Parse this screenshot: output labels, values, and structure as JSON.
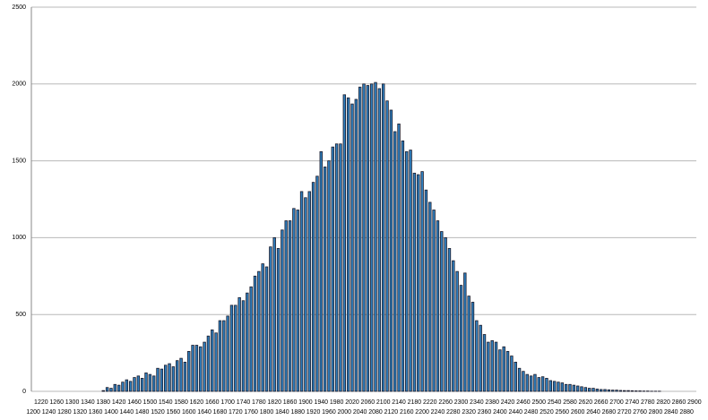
{
  "chart_data": {
    "type": "bar",
    "categories": [
      "1200",
      null,
      "1220",
      null,
      "1240",
      null,
      "1260",
      null,
      "1280",
      null,
      "1300",
      null,
      "1320",
      null,
      "1340",
      null,
      "1360",
      null,
      "1380",
      null,
      "1400",
      null,
      "1420",
      null,
      "1440",
      null,
      "1460",
      null,
      "1480",
      null,
      "1500",
      null,
      "1520",
      null,
      "1540",
      null,
      "1560",
      null,
      "1580",
      null,
      "1600",
      null,
      "1620",
      null,
      "1640",
      null,
      "1660",
      null,
      "1680",
      null,
      "1700",
      null,
      "1720",
      null,
      "1740",
      null,
      "1760",
      null,
      "1780",
      null,
      "1800",
      null,
      "1820",
      null,
      "1840",
      null,
      "1860",
      null,
      "1880",
      null,
      "1900",
      null,
      "1920",
      null,
      "1940",
      null,
      "1960",
      null,
      "1980",
      null,
      "2000",
      null,
      "2020",
      null,
      "2040",
      null,
      "2060",
      null,
      "2080",
      null,
      "2100",
      null,
      "2120",
      null,
      "2140",
      null,
      "2160",
      null,
      "2180",
      null,
      "2200",
      null,
      "2220",
      null,
      "2240",
      null,
      "2260",
      null,
      "2280",
      null,
      "2300",
      null,
      "2320",
      null,
      "2340",
      null,
      "2360",
      null,
      "2380",
      null,
      "2400",
      null,
      "2420",
      null,
      "2440",
      null,
      "2460",
      null,
      "2480",
      null,
      "2500",
      null,
      "2520",
      null,
      "2540",
      null,
      "2560",
      null,
      "2580",
      null,
      "2600",
      null,
      "2620",
      null,
      "2640",
      null,
      "2660",
      null,
      "2680",
      null,
      "2700",
      null,
      "2720",
      null,
      "2740",
      null,
      "2760",
      null,
      "2780",
      null,
      "2800",
      null,
      "2820",
      null,
      "2840",
      null,
      "2860",
      null,
      "2880",
      null,
      "2900"
    ],
    "values": [
      0,
      0,
      0,
      0,
      0,
      0,
      0,
      0,
      0,
      0,
      0,
      0,
      0,
      0,
      0,
      0,
      0,
      0,
      5,
      25,
      20,
      45,
      40,
      60,
      75,
      65,
      90,
      100,
      85,
      120,
      110,
      100,
      150,
      145,
      170,
      180,
      160,
      200,
      215,
      190,
      260,
      300,
      300,
      290,
      320,
      360,
      400,
      380,
      460,
      460,
      490,
      560,
      560,
      610,
      590,
      640,
      680,
      750,
      780,
      830,
      810,
      940,
      1000,
      930,
      1050,
      1110,
      1110,
      1190,
      1180,
      1300,
      1260,
      1300,
      1360,
      1400,
      1560,
      1460,
      1500,
      1590,
      1610,
      1610,
      1930,
      1910,
      1870,
      1900,
      1980,
      2000,
      1990,
      2000,
      2010,
      1970,
      2000,
      1890,
      1830,
      1690,
      1740,
      1630,
      1560,
      1570,
      1420,
      1410,
      1430,
      1310,
      1230,
      1180,
      1110,
      1040,
      1000,
      930,
      850,
      780,
      690,
      770,
      620,
      580,
      460,
      430,
      370,
      320,
      330,
      320,
      270,
      290,
      260,
      230,
      190,
      150,
      130,
      110,
      100,
      110,
      90,
      95,
      85,
      70,
      65,
      60,
      55,
      45,
      45,
      40,
      35,
      30,
      25,
      20,
      20,
      15,
      12,
      12,
      10,
      8,
      8,
      6,
      5,
      5,
      4,
      3,
      3,
      2,
      2,
      1,
      1,
      1,
      0,
      0,
      0,
      0,
      0,
      0,
      0,
      0,
      0
    ],
    "color": "#2f7fbf",
    "ylim": [
      0,
      2500
    ],
    "yticks": [
      0,
      500,
      1000,
      1500,
      2000,
      2500
    ],
    "grid": true
  }
}
